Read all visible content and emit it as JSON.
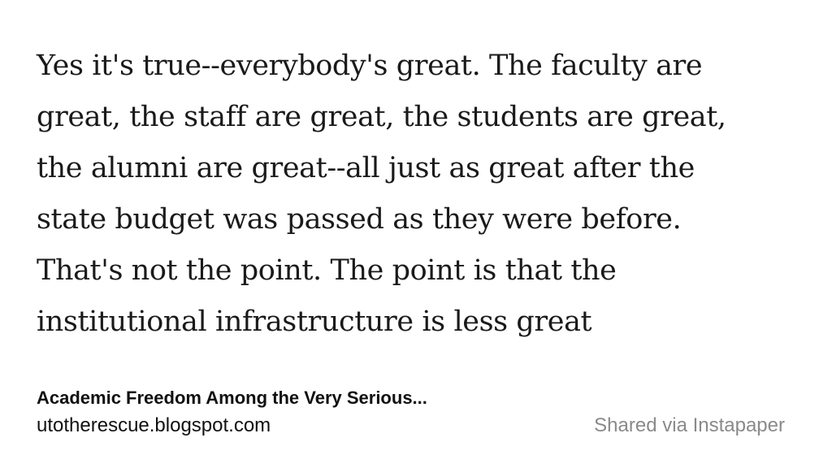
{
  "quote": {
    "text": "Yes it's true--everybody's great. The faculty are\ngreat, the staff are great, the students are great,\nthe alumni are great--all just as great after the\nstate budget was passed as they were before.\nThat's not the point. The point is that the\ninstitutional infrastructure is less great"
  },
  "source": {
    "title": "Academic Freedom Among the Very Serious...",
    "url": "utotherescue.blogspot.com"
  },
  "footer": {
    "shared_via": "Shared via Instapaper"
  }
}
